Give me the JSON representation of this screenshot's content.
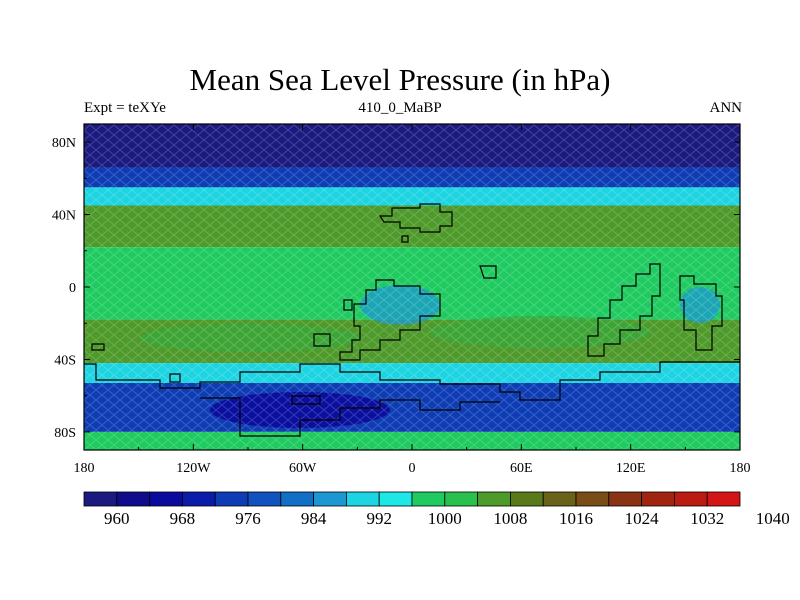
{
  "title": "Mean Sea Level Pressure (in hPa)",
  "left_string": "Expt = teXYe",
  "center_string": "410_0_MaBP",
  "right_string": "ANN",
  "map": {
    "projection": "cylindrical equidistant",
    "lon_range": [
      -180,
      180
    ],
    "lat_range": [
      -90,
      90
    ],
    "x_ticks": [
      {
        "value": -180,
        "label": "180"
      },
      {
        "value": -120,
        "label": "120W"
      },
      {
        "value": -60,
        "label": "60W"
      },
      {
        "value": 0,
        "label": "0"
      },
      {
        "value": 60,
        "label": "60E"
      },
      {
        "value": 120,
        "label": "120E"
      },
      {
        "value": 180,
        "label": "180"
      }
    ],
    "y_ticks": [
      {
        "value": 80,
        "label": "80N"
      },
      {
        "value": 40,
        "label": "40N"
      },
      {
        "value": 0,
        "label": "0"
      },
      {
        "value": -40,
        "label": "40S"
      },
      {
        "value": -80,
        "label": "80S"
      }
    ],
    "field_bands": [
      {
        "lat_from": 90,
        "lat_to": 66,
        "level": "960"
      },
      {
        "lat_from": 66,
        "lat_to": 55,
        "level": "976"
      },
      {
        "lat_from": 55,
        "lat_to": 45,
        "level": "992"
      },
      {
        "lat_from": 45,
        "lat_to": 22,
        "level": "1008"
      },
      {
        "lat_from": 22,
        "lat_to": -18,
        "level": "1000"
      },
      {
        "lat_from": -18,
        "lat_to": -42,
        "level": "1008"
      },
      {
        "lat_from": -42,
        "lat_to": -53,
        "level": "992"
      },
      {
        "lat_from": -53,
        "lat_to": -80,
        "level": "976"
      },
      {
        "lat_from": -80,
        "lat_to": -90,
        "level": "1000"
      }
    ]
  },
  "colorbar": {
    "colors": [
      "#1a1a80",
      "#100d8c",
      "#0a0a9c",
      "#0b1cab",
      "#0d3cb4",
      "#1052be",
      "#126fc6",
      "#1b98d2",
      "#1dd4e2",
      "#1ee8e6",
      "#1fcb60",
      "#28c14e",
      "#4e9a2a",
      "#5a7a1a",
      "#6a6218",
      "#7a4c18",
      "#8a3214",
      "#a02410",
      "#bb1b10",
      "#d41515"
    ],
    "labels": [
      "960",
      "968",
      "976",
      "984",
      "992",
      "1000",
      "1008",
      "1016",
      "1024",
      "1032",
      "1040"
    ]
  }
}
